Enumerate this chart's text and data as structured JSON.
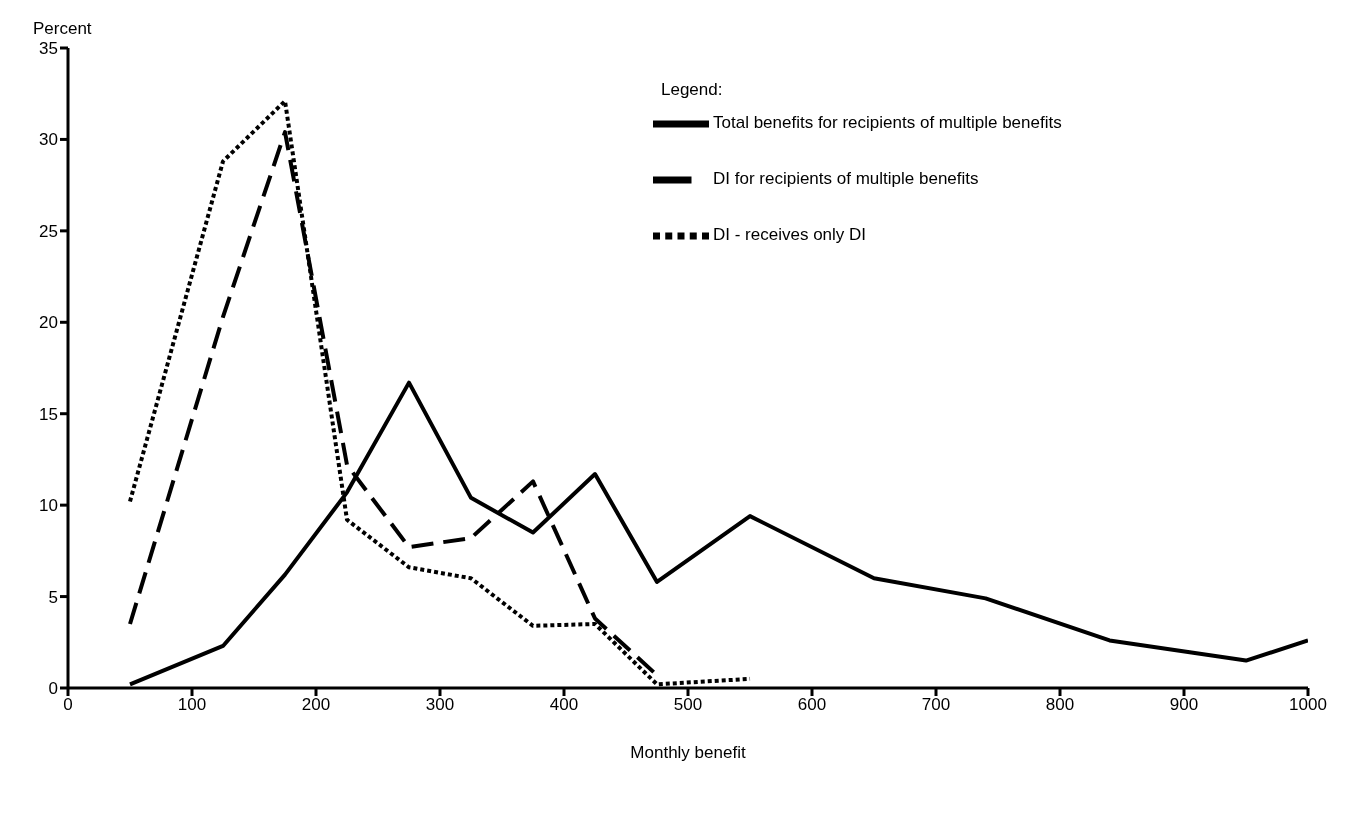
{
  "chart_data": {
    "type": "line",
    "xlabel": "Monthly benefit",
    "ylabel": "Percent",
    "legend_title": "Legend:",
    "xlim": [
      0,
      1000
    ],
    "xticks": [
      0,
      100,
      200,
      300,
      400,
      500,
      600,
      700,
      800,
      900,
      1000
    ],
    "ylim": [
      0,
      35
    ],
    "yticks": [
      0,
      5,
      10,
      15,
      20,
      25,
      30,
      35
    ],
    "grid": false,
    "legend": "top right",
    "marker": "none",
    "series": [
      {
        "name": "Total benefits for recipients of multiple benefits",
        "color": "#000000",
        "line_style": "solid",
        "x": [
          50,
          125,
          175,
          225,
          275,
          325,
          375,
          425,
          475,
          550,
          650,
          740,
          840,
          950,
          1000
        ],
        "values": [
          0.2,
          2.3,
          6.2,
          10.7,
          16.7,
          10.4,
          8.5,
          11.7,
          5.8,
          9.4,
          6.0,
          4.9,
          2.6,
          1.5,
          2.6
        ]
      },
      {
        "name": "DI for recipients of multiple benefits",
        "color": "#000000",
        "line_style": "dashed",
        "x": [
          50,
          125,
          175,
          225,
          275,
          325,
          375,
          425,
          475
        ],
        "values": [
          3.5,
          20.3,
          30.4,
          12.2,
          7.7,
          8.2,
          11.3,
          3.8,
          0.7
        ]
      },
      {
        "name": "DI - receives only DI",
        "color": "#000000",
        "line_style": "dotted",
        "x": [
          50,
          125,
          175,
          225,
          275,
          325,
          375,
          425,
          475,
          550
        ],
        "values": [
          10.2,
          28.8,
          32.1,
          9.2,
          6.6,
          6.0,
          3.4,
          3.5,
          0.2,
          0.5
        ]
      }
    ]
  }
}
